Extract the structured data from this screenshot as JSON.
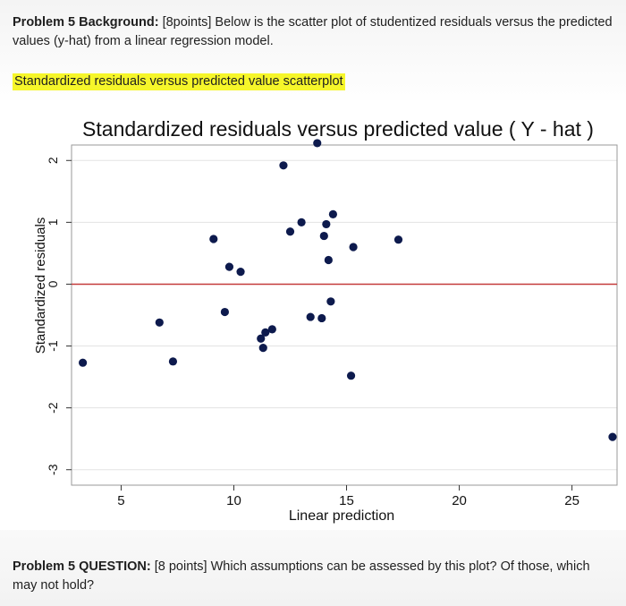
{
  "background": {
    "label": "Problem 5 Background:",
    "text": " [8points] Below is the scatter plot of studentized residuals versus the predicted values (y-hat) from a linear regression model."
  },
  "highlight": {
    "text": "Standardized residuals versus predicted value scatterplot",
    "color": "#f6f62a"
  },
  "question": {
    "label": "Problem 5 QUESTION:",
    "text": " [8 points] Which assumptions can be assessed by this plot? Of those, which may not hold?"
  },
  "chart_data": {
    "type": "scatter",
    "title": "Standardized residuals versus predicted value ( Y - hat )",
    "xlabel": "Linear prediction",
    "ylabel": "Standardized residuals",
    "xlim": [
      2.8,
      27
    ],
    "ylim": [
      -3.25,
      2.25
    ],
    "xticks": [
      5,
      10,
      15,
      20,
      25
    ],
    "yticks": [
      -3,
      -2,
      -1,
      0,
      1,
      2
    ],
    "grid": "horizontal",
    "reference_line": {
      "y": 0,
      "color": "#c43a3a"
    },
    "point_color": "#0d1a4d",
    "points": [
      {
        "x": 3.3,
        "y": -1.27
      },
      {
        "x": 6.7,
        "y": -0.62
      },
      {
        "x": 7.3,
        "y": -1.25
      },
      {
        "x": 9.1,
        "y": 0.73
      },
      {
        "x": 9.6,
        "y": -0.45
      },
      {
        "x": 9.8,
        "y": 0.28
      },
      {
        "x": 10.3,
        "y": 0.2
      },
      {
        "x": 11.2,
        "y": -0.88
      },
      {
        "x": 11.3,
        "y": -1.03
      },
      {
        "x": 11.4,
        "y": -0.78
      },
      {
        "x": 11.7,
        "y": -0.73
      },
      {
        "x": 12.2,
        "y": 1.92
      },
      {
        "x": 12.5,
        "y": 0.85
      },
      {
        "x": 13.0,
        "y": 1.0
      },
      {
        "x": 13.4,
        "y": -0.53
      },
      {
        "x": 13.7,
        "y": 2.28
      },
      {
        "x": 13.9,
        "y": -0.55
      },
      {
        "x": 14.0,
        "y": 0.78
      },
      {
        "x": 14.1,
        "y": 0.97
      },
      {
        "x": 14.2,
        "y": 0.39
      },
      {
        "x": 14.3,
        "y": -0.28
      },
      {
        "x": 14.4,
        "y": 1.13
      },
      {
        "x": 15.2,
        "y": -1.48
      },
      {
        "x": 15.3,
        "y": 0.6
      },
      {
        "x": 17.3,
        "y": 0.72
      },
      {
        "x": 26.8,
        "y": -2.47
      }
    ]
  }
}
